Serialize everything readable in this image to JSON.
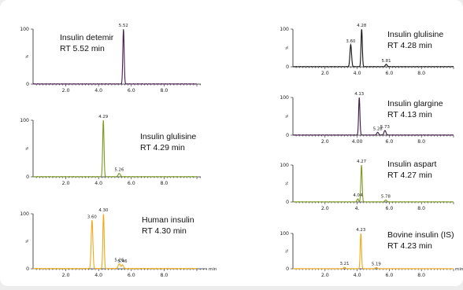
{
  "chart_data": [
    {
      "type": "line",
      "name": "Insulin detemir",
      "rt_label": "RT 5.52 min",
      "color": "#4b1a52",
      "xlim": [
        0,
        10
      ],
      "ylim": [
        0,
        100
      ],
      "x_ticks": [
        "2.0",
        "4.0",
        "6.0",
        "8.0"
      ],
      "x_tick_values": [
        2,
        4,
        6,
        8
      ],
      "y_ticks": [
        "100",
        "0"
      ],
      "y_unit": "%",
      "peaks": [
        {
          "rt": 5.52,
          "h": 100,
          "w": 0.04,
          "label": "5.52"
        }
      ],
      "noise": 0.6
    },
    {
      "type": "line",
      "name": "Insulin glulisine",
      "rt_label": "RT 4.29 min",
      "color": "#7a9a1e",
      "xlim": [
        0,
        10
      ],
      "ylim": [
        0,
        100
      ],
      "x_ticks": [
        "2.0",
        "4.0",
        "6.0",
        "8.0"
      ],
      "x_tick_values": [
        2,
        4,
        6,
        8
      ],
      "y_ticks": [
        "100",
        "0"
      ],
      "y_unit": "%",
      "peaks": [
        {
          "rt": 4.29,
          "h": 100,
          "w": 0.04,
          "label": "4.29"
        },
        {
          "rt": 5.26,
          "h": 6,
          "w": 0.06,
          "label": "5.26"
        }
      ],
      "noise": 0.6
    },
    {
      "type": "line",
      "name": "Human insulin",
      "rt_label": "RT 4.30 min",
      "color": "#f0a818",
      "xlim": [
        0,
        10
      ],
      "ylim": [
        0,
        100
      ],
      "x_ticks": [
        "2.0",
        "4.0",
        "6.0",
        "8.0"
      ],
      "x_tick_values": [
        2,
        4,
        6,
        8
      ],
      "y_ticks": [
        "100",
        "0"
      ],
      "y_unit": "%",
      "x_unit": "min",
      "peaks": [
        {
          "rt": 3.6,
          "h": 88,
          "w": 0.05,
          "label": "3.60"
        },
        {
          "rt": 4.3,
          "h": 100,
          "w": 0.04,
          "label": "4.30"
        },
        {
          "rt": 5.26,
          "h": 9,
          "w": 0.06,
          "label": "5.26"
        },
        {
          "rt": 5.46,
          "h": 7,
          "w": 0.06,
          "label": "5.46"
        }
      ],
      "noise": 0.8
    },
    {
      "type": "line",
      "name": "Insulin glulisine",
      "rt_label": "RT 4.28 min",
      "color": "#111111",
      "xlim": [
        0,
        10
      ],
      "ylim": [
        0,
        100
      ],
      "x_ticks": [
        "2.0",
        "4.0",
        "6.0",
        "8.0"
      ],
      "x_tick_values": [
        2,
        4,
        6,
        8
      ],
      "y_ticks": [
        "100",
        "0"
      ],
      "y_unit": "%",
      "peaks": [
        {
          "rt": 3.6,
          "h": 58,
          "w": 0.05,
          "label": "3.60"
        },
        {
          "rt": 4.28,
          "h": 100,
          "w": 0.04,
          "label": "4.28"
        },
        {
          "rt": 5.81,
          "h": 6,
          "w": 0.06,
          "label": "5.81"
        }
      ],
      "noise": 0.8
    },
    {
      "type": "line",
      "name": "Insulin glargine",
      "rt_label": "RT 4.13 min",
      "color": "#3d1745",
      "xlim": [
        0,
        10
      ],
      "ylim": [
        0,
        100
      ],
      "x_ticks": [
        "2.0",
        "4.00",
        "6.0",
        "8.0"
      ],
      "x_tick_values": [
        2,
        4,
        6,
        8
      ],
      "y_ticks": [
        "100",
        "0"
      ],
      "y_unit": "%",
      "peaks": [
        {
          "rt": 4.13,
          "h": 100,
          "w": 0.04,
          "label": "4.13"
        },
        {
          "rt": 5.28,
          "h": 7,
          "w": 0.06,
          "label": "5.28"
        },
        {
          "rt": 5.73,
          "h": 12,
          "w": 0.06,
          "label": "5.73"
        }
      ],
      "noise": 0.8
    },
    {
      "type": "line",
      "name": "Insulin aspart",
      "rt_label": "RT 4.27 min",
      "color": "#7a9a1e",
      "xlim": [
        0,
        10
      ],
      "ylim": [
        0,
        100
      ],
      "x_ticks": [
        "2.0",
        "4.",
        "6.0",
        "8.0"
      ],
      "x_tick_values": [
        2,
        4,
        6,
        8
      ],
      "y_ticks": [
        "100",
        "0"
      ],
      "y_unit": "%",
      "peaks": [
        {
          "rt": 4.04,
          "h": 8,
          "w": 0.05,
          "label": "4.04"
        },
        {
          "rt": 4.27,
          "h": 100,
          "w": 0.04,
          "label": "4.27"
        },
        {
          "rt": 5.78,
          "h": 5,
          "w": 0.06,
          "label": "5.78"
        }
      ],
      "noise": 0.7
    },
    {
      "type": "line",
      "name": "Bovine insulin (IS)",
      "rt_label": "RT 4.23 min",
      "color": "#f0a818",
      "xlim": [
        0,
        10
      ],
      "ylim": [
        0,
        100
      ],
      "x_ticks": [
        "2.0",
        "4.0",
        "6.0",
        "8.0"
      ],
      "x_tick_values": [
        2,
        4,
        6,
        8
      ],
      "y_ticks": [
        "100",
        "0"
      ],
      "y_unit": "%",
      "x_unit": "min",
      "peaks": [
        {
          "rt": 3.21,
          "h": 4,
          "w": 0.05,
          "label": "3.21"
        },
        {
          "rt": 4.23,
          "h": 100,
          "w": 0.04,
          "label": "4.23"
        },
        {
          "rt": 5.19,
          "h": 3,
          "w": 0.06,
          "label": "5.19"
        }
      ],
      "noise": 0.6
    }
  ]
}
